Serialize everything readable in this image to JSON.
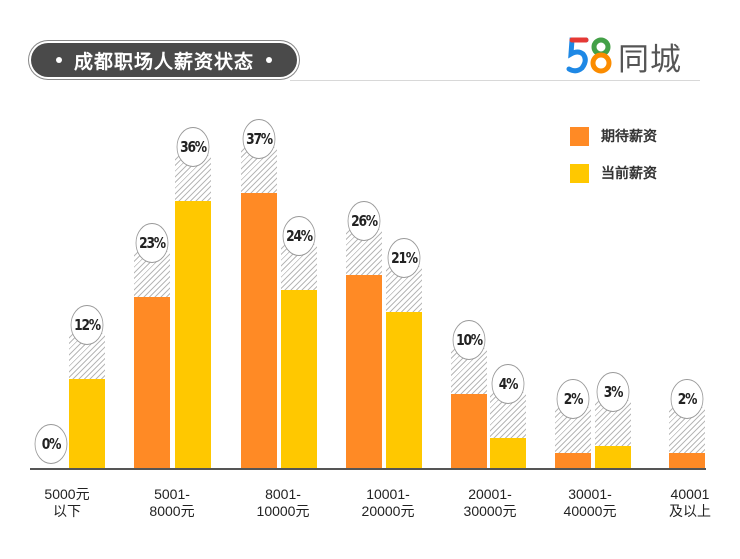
{
  "header": {
    "title": "成都职场人薪资状态",
    "logo_number": "58",
    "logo_text": "同城"
  },
  "legend": [
    {
      "label": "期待薪资",
      "color": "#FF8A25"
    },
    {
      "label": "当前薪资",
      "color": "#FFC800"
    }
  ],
  "chart_data": {
    "type": "bar",
    "title": "成都职场人薪资状态",
    "xlabel": "",
    "ylabel": "",
    "ylim": [
      0,
      40
    ],
    "grid": false,
    "legend_position": "top-right",
    "categories": [
      "5000元以下",
      "5001-8000元",
      "8001-10000元",
      "10001-20000元",
      "20001-30000元",
      "30001-40000元",
      "40001及以上"
    ],
    "category_lines": [
      [
        "5000元",
        "以下"
      ],
      [
        "5001-",
        "8000元"
      ],
      [
        "8001-",
        "10000元"
      ],
      [
        "10001-",
        "20000元"
      ],
      [
        "20001-",
        "30000元"
      ],
      [
        "30001-",
        "40000元"
      ],
      [
        "40001",
        "及以上"
      ]
    ],
    "series": [
      {
        "name": "期待薪资",
        "color": "#FF8A25",
        "values": [
          0,
          23,
          37,
          26,
          10,
          2,
          2
        ],
        "labels": [
          "0%",
          "23%",
          "37%",
          "26%",
          "10%",
          "2%",
          "2%"
        ]
      },
      {
        "name": "当前薪资",
        "color": "#FFC800",
        "values": [
          12,
          36,
          24,
          21,
          4,
          3,
          null
        ],
        "labels": [
          "12%",
          "36%",
          "24%",
          "21%",
          "4%",
          "3%",
          null
        ]
      }
    ]
  }
}
